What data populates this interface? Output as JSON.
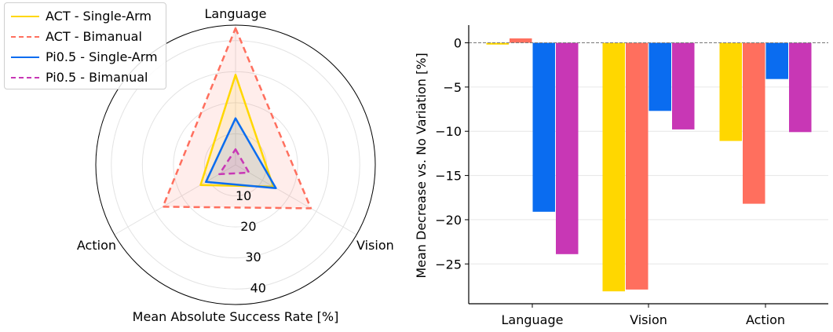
{
  "colors": {
    "act_single": "#FFD700",
    "act_bimanual": "#FF6F5E",
    "pi_single": "#0A6CF0",
    "pi_bimanual": "#C837B5"
  },
  "chart_data": [
    {
      "type": "radar",
      "xlabel": "Mean Absolute Success Rate [%]",
      "axes": [
        "Language",
        "Vision",
        "Action"
      ],
      "radial_ticks": [
        "10",
        "20",
        "30",
        "40"
      ],
      "rlim": [
        0,
        45
      ],
      "grid": true,
      "series": [
        {
          "name": "ACT - Single-Arm",
          "values": [
            29,
            14,
            13
          ],
          "color": "#FFD700",
          "style": "solid"
        },
        {
          "name": "ACT - Bimanual",
          "values": [
            44,
            28,
            27
          ],
          "color": "#FF6F5E",
          "style": "dashed"
        },
        {
          "name": "Pi0.5 - Single-Arm",
          "values": [
            15,
            15,
            11
          ],
          "color": "#0A6CF0",
          "style": "solid"
        },
        {
          "name": "Pi0.5 - Bimanual",
          "values": [
            5,
            5,
            6
          ],
          "color": "#C837B5",
          "style": "dashed"
        }
      ],
      "legend": "top-left"
    },
    {
      "type": "bar",
      "categories": [
        "Language",
        "Vision",
        "Action"
      ],
      "ylabel": "Mean Decrease vs. No Variation [%]",
      "ylim": [
        -29.5,
        2
      ],
      "yticks": [
        "0",
        "−5",
        "−10",
        "−15",
        "−20",
        "−25"
      ],
      "grid": true,
      "series": [
        {
          "name": "ACT - Single-Arm",
          "values": [
            -0.2,
            -28.1,
            -11.1
          ],
          "color": "#FFD700"
        },
        {
          "name": "ACT - Bimanual",
          "values": [
            0.5,
            -27.9,
            -18.2
          ],
          "color": "#FF6F5E"
        },
        {
          "name": "Pi0.5 - Single-Arm",
          "values": [
            -19.1,
            -7.7,
            -4.1
          ],
          "color": "#0A6CF0"
        },
        {
          "name": "Pi0.5 - Bimanual",
          "values": [
            -23.9,
            -9.8,
            -10.1
          ],
          "color": "#C837B5"
        }
      ]
    }
  ]
}
